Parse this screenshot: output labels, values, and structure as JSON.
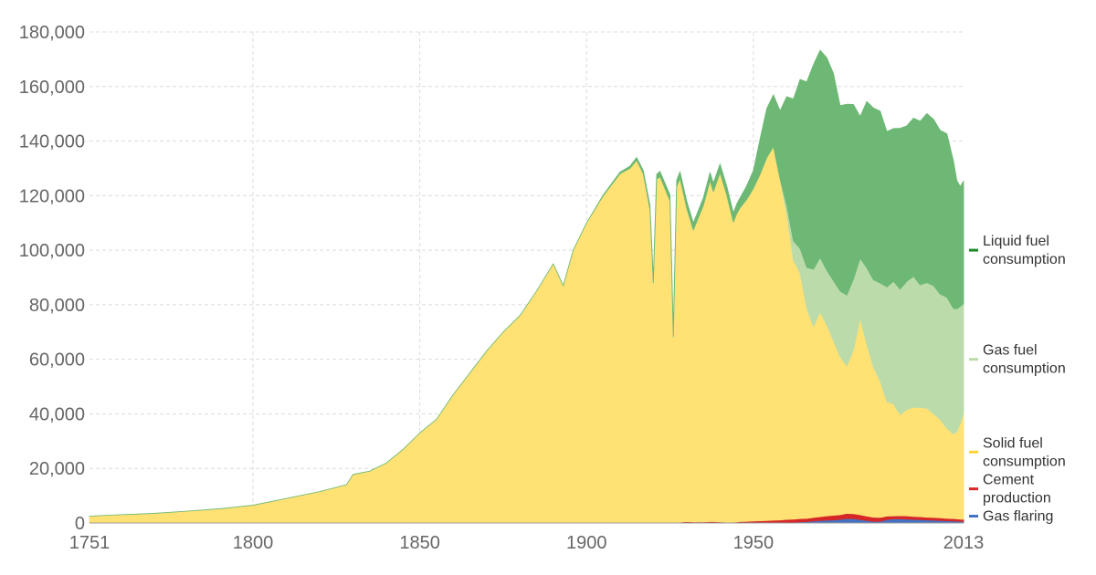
{
  "chart_data": {
    "type": "area",
    "stacked": true,
    "title": "",
    "xlabel": "",
    "ylabel": "",
    "xlim": [
      1751,
      2013
    ],
    "ylim": [
      0,
      180000
    ],
    "x_ticks": [
      1751,
      1800,
      1850,
      1900,
      1950,
      2013
    ],
    "y_ticks": [
      0,
      20000,
      40000,
      60000,
      80000,
      100000,
      120000,
      140000,
      160000,
      180000
    ],
    "y_tick_labels": [
      "0",
      "20,000",
      "40,000",
      "60,000",
      "80,000",
      "100,000",
      "120,000",
      "140,000",
      "160,000",
      "180,000"
    ],
    "grid": true,
    "legend_position": "right",
    "x": [
      1751,
      1760,
      1770,
      1780,
      1790,
      1800,
      1810,
      1820,
      1828,
      1830,
      1835,
      1840,
      1845,
      1850,
      1855,
      1860,
      1865,
      1870,
      1875,
      1880,
      1885,
      1890,
      1893,
      1896,
      1900,
      1905,
      1910,
      1913,
      1915,
      1917,
      1919,
      1920,
      1921,
      1922,
      1925,
      1926,
      1927,
      1928,
      1930,
      1932,
      1935,
      1937,
      1938,
      1940,
      1942,
      1944,
      1945,
      1946,
      1948,
      1950,
      1952,
      1954,
      1956,
      1958,
      1960,
      1962,
      1964,
      1966,
      1968,
      1970,
      1972,
      1974,
      1976,
      1978,
      1980,
      1982,
      1984,
      1986,
      1988,
      1990,
      1992,
      1994,
      1996,
      1998,
      2000,
      2002,
      2004,
      2006,
      2008,
      2010,
      2011,
      2012,
      2013
    ],
    "series": [
      {
        "name": "Gas flaring",
        "color": "#4472c4",
        "values": [
          0,
          0,
          0,
          0,
          0,
          0,
          0,
          0,
          0,
          0,
          0,
          0,
          0,
          0,
          0,
          0,
          0,
          0,
          0,
          0,
          0,
          0,
          0,
          0,
          0,
          0,
          0,
          0,
          0,
          0,
          0,
          0,
          0,
          0,
          0,
          0,
          0,
          0,
          0,
          0,
          0,
          0,
          0,
          0,
          0,
          0,
          0,
          0,
          0,
          0,
          0,
          0,
          0,
          100,
          200,
          300,
          400,
          500,
          700,
          900,
          1000,
          1100,
          1300,
          1600,
          1600,
          1200,
          900,
          600,
          600,
          1200,
          1500,
          1500,
          1400,
          1300,
          1200,
          1100,
          1000,
          900,
          800,
          700,
          650,
          600,
          550
        ]
      },
      {
        "name": "Cement production",
        "color": "#d62728",
        "values": [
          0,
          0,
          0,
          0,
          0,
          0,
          0,
          0,
          0,
          0,
          0,
          0,
          0,
          0,
          0,
          0,
          0,
          0,
          0,
          0,
          0,
          0,
          0,
          0,
          0,
          0,
          0,
          0,
          0,
          0,
          0,
          0,
          0,
          0,
          100,
          200,
          250,
          300,
          500,
          400,
          400,
          500,
          500,
          400,
          300,
          300,
          400,
          500,
          600,
          700,
          800,
          900,
          1000,
          1000,
          1100,
          1100,
          1200,
          1200,
          1300,
          1400,
          1600,
          1700,
          1700,
          1900,
          1800,
          1800,
          1600,
          1500,
          1400,
          1300,
          1100,
          1200,
          1200,
          1100,
          1100,
          1000,
          1000,
          1000,
          900,
          900,
          850,
          800,
          800
        ]
      },
      {
        "name": "Solid fuel consumption",
        "color": "#ffe174",
        "values": [
          2500,
          3000,
          3500,
          4300,
          5200,
          6500,
          9000,
          11500,
          14000,
          17800,
          19000,
          22000,
          27000,
          33000,
          38000,
          47000,
          55000,
          63000,
          70000,
          76000,
          85000,
          95000,
          87000,
          100000,
          110000,
          120000,
          128000,
          130000,
          133000,
          128000,
          115000,
          88000,
          126000,
          127000,
          118000,
          68000,
          123000,
          126000,
          115000,
          107000,
          116000,
          125000,
          121000,
          128000,
          120000,
          110000,
          113000,
          115000,
          118000,
          122000,
          127000,
          133000,
          137000,
          125000,
          112000,
          95000,
          90000,
          77000,
          70000,
          75000,
          70000,
          64000,
          58000,
          54000,
          60000,
          72000,
          63000,
          55000,
          50000,
          42000,
          41000,
          37000,
          39000,
          40000,
          40000,
          40000,
          38000,
          36000,
          33000,
          31000,
          32000,
          35000,
          39000
        ]
      },
      {
        "name": "Gas fuel consumption",
        "color": "#bbdcaa",
        "values": [
          0,
          0,
          0,
          0,
          0,
          0,
          0,
          0,
          0,
          0,
          0,
          0,
          0,
          0,
          0,
          0,
          0,
          0,
          0,
          0,
          0,
          0,
          0,
          0,
          0,
          0,
          0,
          0,
          0,
          0,
          0,
          0,
          0,
          0,
          0,
          0,
          0,
          0,
          0,
          0,
          0,
          0,
          0,
          0,
          0,
          0,
          0,
          0,
          0,
          0,
          0,
          0,
          0,
          0,
          3000,
          7000,
          9000,
          15000,
          21000,
          20000,
          20000,
          22000,
          24000,
          26000,
          26000,
          22000,
          28000,
          32000,
          36000,
          42000,
          45000,
          46000,
          47000,
          48000,
          45000,
          46000,
          47000,
          46000,
          48000,
          46000,
          45000,
          43000,
          40000
        ]
      },
      {
        "name": "Liquid fuel consumption",
        "color": "#6db874",
        "values": [
          0,
          0,
          0,
          0,
          0,
          0,
          0,
          0,
          0,
          0,
          0,
          0,
          0,
          0,
          0,
          0,
          0,
          0,
          0,
          0,
          0,
          0,
          0,
          0,
          0,
          300,
          600,
          800,
          1000,
          1200,
          1500,
          1600,
          1800,
          1900,
          2200,
          2300,
          2400,
          2500,
          2600,
          2600,
          2800,
          3000,
          3100,
          3200,
          3300,
          3400,
          3500,
          3700,
          5000,
          6500,
          13000,
          18000,
          19000,
          25000,
          40000,
          52000,
          62000,
          68000,
          75000,
          76000,
          78000,
          76000,
          68000,
          70000,
          64000,
          52000,
          61000,
          63000,
          63000,
          57000,
          56000,
          59000,
          57000,
          58000,
          60000,
          62000,
          61000,
          60000,
          60000,
          54000,
          47000,
          44000,
          45000
        ]
      }
    ],
    "legend_entries": [
      {
        "label": "Liquid fuel\nconsumption",
        "color": "#1e8a2e",
        "y": 100000
      },
      {
        "label": "Gas fuel\nconsumption",
        "color": "#bbdcaa",
        "y": 60000
      },
      {
        "label": "Solid fuel\nconsumption",
        "color": "#ffd23c",
        "y": 26000
      },
      {
        "label": "Cement\nproduction",
        "color": "#d62728",
        "y": 12500
      },
      {
        "label": "Gas flaring",
        "color": "#4472c4",
        "y": 2500
      }
    ]
  }
}
